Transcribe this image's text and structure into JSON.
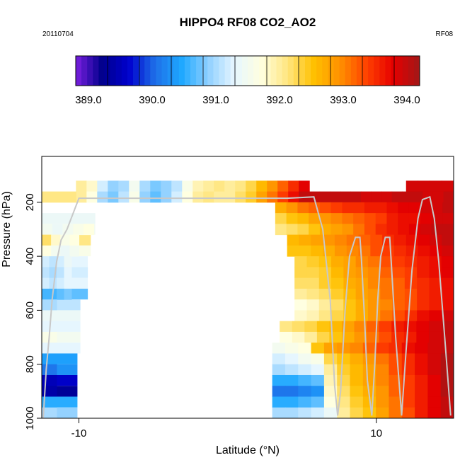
{
  "chart_data": {
    "type": "heatmap",
    "title": "HIPPO4 RF08 CO2_AO2",
    "date_label": "20110704",
    "flight_label": "RF08",
    "xlabel": "Latitude (°N)",
    "ylabel": "Pressure (hPa)",
    "xlim": [
      -12.5,
      15.2
    ],
    "ylim": [
      1000,
      30
    ],
    "x_ticks": [
      -10,
      10
    ],
    "x_tick_labels": [
      "-10",
      "10"
    ],
    "y_ticks": [
      200,
      400,
      600,
      800,
      1000
    ],
    "y_tick_labels": [
      "200",
      "400",
      "600",
      "800",
      "1000"
    ],
    "colorbar": {
      "min": 388.8,
      "max": 394.2,
      "ticks": [
        389.0,
        390.0,
        391.0,
        392.0,
        393.0,
        394.0
      ],
      "tick_labels": [
        "389.0",
        "390.0",
        "391.0",
        "392.0",
        "393.0",
        "394.0"
      ],
      "colors": [
        "#7B1FE0",
        "#00008B",
        "#0000CD",
        "#1E6FE8",
        "#1EA8FF",
        "#8FD0FF",
        "#E6F6FF",
        "#FFFFE0",
        "#FFE680",
        "#FFC000",
        "#FF9000",
        "#FF4000",
        "#E60000",
        "#A01818"
      ]
    },
    "bands": [
      {
        "p0": 120,
        "p1": 160,
        "x0": -10.2,
        "x1": 5.5,
        "values": [
          392.0,
          391.8,
          391.2,
          390.9,
          391.0,
          391.5,
          391.0,
          390.8,
          390.9,
          391.1,
          391.6,
          391.9,
          392.0,
          392.1,
          392.0,
          392.1,
          392.3,
          392.6,
          392.9,
          393.2,
          393.5,
          393.8
        ]
      },
      {
        "p0": 160,
        "p1": 200,
        "x0": -10.2,
        "x1": 5.5,
        "values": [
          392.0,
          391.7,
          391.0,
          390.8,
          391.1,
          391.6,
          390.9,
          390.7,
          390.9,
          391.2,
          391.7,
          392.0,
          392.1,
          392.0,
          392.0,
          392.2,
          392.4,
          392.8,
          393.1,
          393.4,
          393.7,
          394.0
        ]
      },
      {
        "p0": 120,
        "p1": 160,
        "x0": 12.0,
        "x1": 15.2,
        "values": [
          393.9,
          393.9,
          393.9,
          393.9
        ]
      },
      {
        "p0": 160,
        "p1": 200,
        "x0": 5.5,
        "x1": 15.2,
        "values": [
          394.0,
          394.0,
          394.0,
          394.0,
          394.0,
          393.9,
          393.9,
          393.9,
          394.0,
          394.0,
          394.0,
          393.9,
          393.9,
          394.0
        ]
      },
      {
        "p0": 160,
        "p1": 200,
        "x0": -12.5,
        "x1": -10.2,
        "values": [
          392.1
        ]
      },
      {
        "p0": 200,
        "p1": 240,
        "x0": 3.2,
        "x1": 15.2,
        "values": [
          392.7,
          392.9,
          393.1,
          393.2,
          393.3,
          393.4,
          393.5,
          393.5,
          393.6,
          393.6,
          393.7,
          393.8,
          393.8,
          393.9,
          393.9,
          394.0
        ]
      },
      {
        "p0": 240,
        "p1": 280,
        "x0": 3.2,
        "x1": 15.2,
        "values": [
          392.3,
          392.5,
          392.6,
          392.8,
          392.9,
          393.0,
          393.1,
          393.2,
          393.3,
          393.4,
          393.6,
          393.7,
          393.7,
          393.8,
          393.9,
          393.9
        ]
      },
      {
        "p0": 280,
        "p1": 320,
        "x0": 3.2,
        "x1": 15.2,
        "values": [
          392.1,
          392.2,
          392.3,
          392.5,
          392.7,
          392.8,
          392.9,
          393.1,
          393.3,
          393.5,
          393.6,
          393.7,
          393.8,
          393.9,
          394.0,
          394.0
        ]
      },
      {
        "p0": 280,
        "p1": 320,
        "x0": -12.5,
        "x1": -9.0,
        "values": [
          391.5,
          391.4,
          391.5,
          391.6,
          391.7
        ]
      },
      {
        "p0": 320,
        "p1": 360,
        "x0": 4.0,
        "x1": 15.2,
        "values": [
          392.6,
          392.7,
          392.8,
          392.9,
          393.0,
          393.1,
          393.2,
          393.3,
          393.5,
          393.6,
          393.7,
          393.8,
          393.9,
          394.0
        ]
      },
      {
        "p0": 320,
        "p1": 360,
        "x0": -12.5,
        "x1": -10.0,
        "values": [
          392.2,
          391.8,
          391.6,
          391.7
        ]
      },
      {
        "p0": 360,
        "p1": 400,
        "x0": 4.0,
        "x1": 15.2,
        "values": [
          392.5,
          392.5,
          392.6,
          392.7,
          392.9,
          393.0,
          393.1,
          393.3,
          393.4,
          393.5,
          393.6,
          393.7,
          393.8,
          393.9
        ]
      },
      {
        "p0": 360,
        "p1": 400,
        "x0": -12.5,
        "x1": -10.0,
        "values": [
          391.7,
          391.5,
          391.4,
          391.5
        ]
      },
      {
        "p0": 400,
        "p1": 440,
        "x0": 4.5,
        "x1": 15.2,
        "values": [
          392.3,
          392.4,
          392.5,
          392.7,
          392.8,
          393.0,
          393.1,
          393.3,
          393.4,
          393.5,
          393.6,
          393.7,
          393.8
        ]
      },
      {
        "p0": 400,
        "p1": 440,
        "x0": -12.5,
        "x1": -10.5,
        "values": [
          391.2,
          391.1,
          391.2,
          391.4
        ]
      },
      {
        "p0": 440,
        "p1": 480,
        "x0": 4.5,
        "x1": 15.2,
        "values": [
          392.3,
          392.3,
          392.4,
          392.6,
          392.8,
          392.9,
          393.0,
          393.2,
          393.3,
          393.4,
          393.6,
          393.7,
          393.8
        ]
      },
      {
        "p0": 440,
        "p1": 480,
        "x0": -12.5,
        "x1": -10.5,
        "values": [
          391.1,
          391.0,
          391.1,
          391.3
        ]
      },
      {
        "p0": 480,
        "p1": 520,
        "x0": 4.5,
        "x1": 15.2,
        "values": [
          392.2,
          392.2,
          392.4,
          392.5,
          392.7,
          392.8,
          393.0,
          393.1,
          393.2,
          393.4,
          393.5,
          393.6,
          393.7
        ]
      },
      {
        "p0": 480,
        "p1": 520,
        "x0": -12.5,
        "x1": -10.5,
        "values": [
          391.2,
          391.1,
          391.2,
          391.3
        ]
      },
      {
        "p0": 520,
        "p1": 560,
        "x0": 4.5,
        "x1": 15.2,
        "values": [
          392.0,
          392.1,
          392.2,
          392.4,
          392.6,
          392.8,
          392.9,
          393.1,
          393.2,
          393.3,
          393.5,
          393.6,
          393.7
        ]
      },
      {
        "p0": 520,
        "p1": 560,
        "x0": -12.5,
        "x1": -10.5,
        "values": [
          390.6,
          390.6,
          390.7,
          390.8
        ]
      },
      {
        "p0": 560,
        "p1": 600,
        "x0": 4.5,
        "x1": 15.2,
        "values": [
          391.7,
          391.8,
          392.0,
          392.2,
          392.5,
          392.7,
          392.9,
          393.0,
          393.2,
          393.3,
          393.5,
          393.6,
          393.7
        ]
      },
      {
        "p0": 560,
        "p1": 600,
        "x0": -12.5,
        "x1": -11.5,
        "values": [
          391.0
        ]
      },
      {
        "p0": 600,
        "p1": 640,
        "x0": 4.5,
        "x1": 15.2,
        "values": [
          391.8,
          391.9,
          392.1,
          392.3,
          392.5,
          392.7,
          392.9,
          393.1,
          393.3,
          393.5,
          393.7,
          393.8,
          393.9
        ]
      },
      {
        "p0": 600,
        "p1": 640,
        "x0": -12.5,
        "x1": -11.5,
        "values": [
          391.4
        ]
      },
      {
        "p0": 640,
        "p1": 680,
        "x0": 3.5,
        "x1": 15.2,
        "values": [
          392.1,
          392.2,
          392.3,
          392.5,
          392.6,
          392.8,
          393.0,
          393.2,
          393.4,
          393.6,
          393.7,
          393.8,
          393.9,
          394.0
        ]
      },
      {
        "p0": 640,
        "p1": 680,
        "x0": -12.5,
        "x1": -11.5,
        "values": [
          391.3
        ]
      },
      {
        "p0": 680,
        "p1": 720,
        "x0": 3.5,
        "x1": 15.2,
        "values": [
          391.7,
          391.8,
          392.0,
          392.3,
          392.5,
          392.7,
          392.9,
          393.1,
          393.3,
          393.5,
          393.6,
          393.8,
          393.9,
          394.0
        ]
      },
      {
        "p0": 680,
        "p1": 720,
        "x0": -12.5,
        "x1": -11.5,
        "values": [
          391.6
        ]
      },
      {
        "p0": 720,
        "p1": 760,
        "x0": 3.0,
        "x1": 15.2,
        "values": [
          391.5,
          391.6,
          391.7,
          392.5,
          392.8,
          392.9,
          393.0,
          393.2,
          393.4,
          393.5,
          393.7,
          393.8,
          393.9,
          394.0
        ]
      },
      {
        "p0": 720,
        "p1": 760,
        "x0": -12.5,
        "x1": -11.5,
        "values": [
          391.3
        ]
      },
      {
        "p0": 760,
        "p1": 800,
        "x0": 3.0,
        "x1": 15.2,
        "values": [
          391.2,
          391.3,
          391.5,
          391.6,
          392.3,
          392.5,
          392.7,
          392.9,
          393.1,
          393.3,
          393.5,
          393.7,
          393.9,
          394.1
        ]
      },
      {
        "p0": 760,
        "p1": 800,
        "x0": -12.5,
        "x1": -11.5,
        "values": [
          390.4
        ]
      },
      {
        "p0": 800,
        "p1": 840,
        "x0": 3.0,
        "x1": 15.2,
        "values": [
          391.0,
          391.1,
          391.2,
          391.3,
          392.0,
          392.4,
          392.6,
          392.8,
          393.0,
          393.3,
          393.5,
          393.7,
          393.9,
          394.1
        ]
      },
      {
        "p0": 800,
        "p1": 840,
        "x0": -12.5,
        "x1": -11.5,
        "values": [
          390.1
        ]
      },
      {
        "p0": 840,
        "p1": 880,
        "x0": 3.0,
        "x1": 15.2,
        "values": [
          390.5,
          390.5,
          390.6,
          390.7,
          391.9,
          392.3,
          392.6,
          392.8,
          393.0,
          393.2,
          393.4,
          393.6,
          393.8,
          394.1
        ]
      },
      {
        "p0": 840,
        "p1": 880,
        "x0": -12.5,
        "x1": -11.5,
        "values": [
          389.5
        ]
      },
      {
        "p0": 880,
        "p1": 920,
        "x0": 3.0,
        "x1": 15.2,
        "values": [
          390.1,
          390.1,
          390.2,
          390.3,
          391.8,
          392.2,
          392.5,
          392.7,
          392.9,
          393.2,
          393.4,
          393.6,
          393.8,
          394.1
        ]
      },
      {
        "p0": 880,
        "p1": 920,
        "x0": -12.5,
        "x1": -11.5,
        "values": [
          389.4
        ]
      },
      {
        "p0": 920,
        "p1": 960,
        "x0": 3.0,
        "x1": 15.2,
        "values": [
          390.5,
          390.5,
          390.6,
          390.7,
          391.7,
          392.1,
          392.4,
          392.6,
          392.9,
          393.1,
          393.4,
          393.6,
          393.8,
          394.0
        ]
      },
      {
        "p0": 920,
        "p1": 960,
        "x0": -12.5,
        "x1": -11.5,
        "values": [
          390.5
        ]
      },
      {
        "p0": 960,
        "p1": 1000,
        "x0": 3.0,
        "x1": 15.2,
        "values": [
          391.0,
          391.0,
          391.1,
          391.2,
          391.4,
          392.0,
          392.3,
          392.5,
          392.8,
          393.1,
          393.3,
          393.6,
          393.8,
          394.0
        ]
      },
      {
        "p0": 960,
        "p1": 1000,
        "x0": -12.5,
        "x1": -11.5,
        "values": [
          391.0
        ]
      }
    ],
    "extra_cells": [
      {
        "p0": 240,
        "p1": 280,
        "x0": -12.5,
        "x1": -8.9,
        "v": 391.4
      },
      {
        "p0": 280,
        "p1": 320,
        "x0": -12.5,
        "x1": -8.9,
        "v": 391.5
      },
      {
        "p0": 320,
        "p1": 360,
        "x0": -12.5,
        "x1": -9.2,
        "v": 392.1
      },
      {
        "p0": 360,
        "p1": 400,
        "x0": -12.5,
        "x1": -9.2,
        "v": 391.6
      },
      {
        "p0": 400,
        "p1": 440,
        "x0": -12.5,
        "x1": -9.4,
        "v": 391.3
      },
      {
        "p0": 440,
        "p1": 480,
        "x0": -12.5,
        "x1": -9.4,
        "v": 391.2
      },
      {
        "p0": 480,
        "p1": 520,
        "x0": -12.5,
        "x1": -9.4,
        "v": 391.3
      },
      {
        "p0": 520,
        "p1": 560,
        "x0": -12.5,
        "x1": -9.4,
        "v": 390.7
      },
      {
        "p0": 560,
        "p1": 600,
        "x0": -12.5,
        "x1": -9.9,
        "v": 391.1
      },
      {
        "p0": 600,
        "p1": 640,
        "x0": -12.5,
        "x1": -9.9,
        "v": 391.4
      },
      {
        "p0": 640,
        "p1": 680,
        "x0": -12.5,
        "x1": -9.9,
        "v": 391.3
      },
      {
        "p0": 680,
        "p1": 720,
        "x0": -12.5,
        "x1": -9.9,
        "v": 391.5
      },
      {
        "p0": 720,
        "p1": 760,
        "x0": -12.5,
        "x1": -9.9,
        "v": 391.3
      },
      {
        "p0": 760,
        "p1": 800,
        "x0": -12.5,
        "x1": -10.1,
        "v": 390.4
      },
      {
        "p0": 800,
        "p1": 840,
        "x0": -12.5,
        "x1": -10.1,
        "v": 390.3
      },
      {
        "p0": 840,
        "p1": 880,
        "x0": -12.5,
        "x1": -10.1,
        "v": 389.6
      },
      {
        "p0": 880,
        "p1": 920,
        "x0": -12.5,
        "x1": -10.1,
        "v": 389.3
      },
      {
        "p0": 920,
        "p1": 960,
        "x0": -12.5,
        "x1": -10.1,
        "v": 390.5
      },
      {
        "p0": 960,
        "p1": 1000,
        "x0": -12.5,
        "x1": -10.1,
        "v": 390.9
      }
    ],
    "flight_track": [
      [
        -12.4,
        1000
      ],
      [
        -12.2,
        820
      ],
      [
        -12.0,
        700
      ],
      [
        -11.8,
        560
      ],
      [
        -11.5,
        420
      ],
      [
        -11.2,
        340
      ],
      [
        -10.8,
        300
      ],
      [
        -10.0,
        185
      ],
      [
        -5.0,
        185
      ],
      [
        0.0,
        185
      ],
      [
        4.0,
        185
      ],
      [
        5.8,
        180
      ],
      [
        6.4,
        300
      ],
      [
        6.9,
        560
      ],
      [
        7.2,
        880
      ],
      [
        7.4,
        990
      ],
      [
        7.6,
        900
      ],
      [
        7.9,
        600
      ],
      [
        8.2,
        400
      ],
      [
        8.6,
        330
      ],
      [
        8.9,
        330
      ],
      [
        9.0,
        410
      ],
      [
        9.2,
        620
      ],
      [
        9.4,
        860
      ],
      [
        9.7,
        990
      ],
      [
        9.9,
        800
      ],
      [
        10.1,
        560
      ],
      [
        10.3,
        400
      ],
      [
        10.6,
        330
      ],
      [
        10.9,
        330
      ],
      [
        11.0,
        420
      ],
      [
        11.3,
        700
      ],
      [
        11.7,
        990
      ],
      [
        12.0,
        750
      ],
      [
        12.4,
        450
      ],
      [
        12.8,
        260
      ],
      [
        13.1,
        190
      ],
      [
        13.6,
        180
      ],
      [
        13.9,
        260
      ],
      [
        14.2,
        420
      ],
      [
        14.6,
        700
      ],
      [
        15.0,
        990
      ]
    ]
  }
}
